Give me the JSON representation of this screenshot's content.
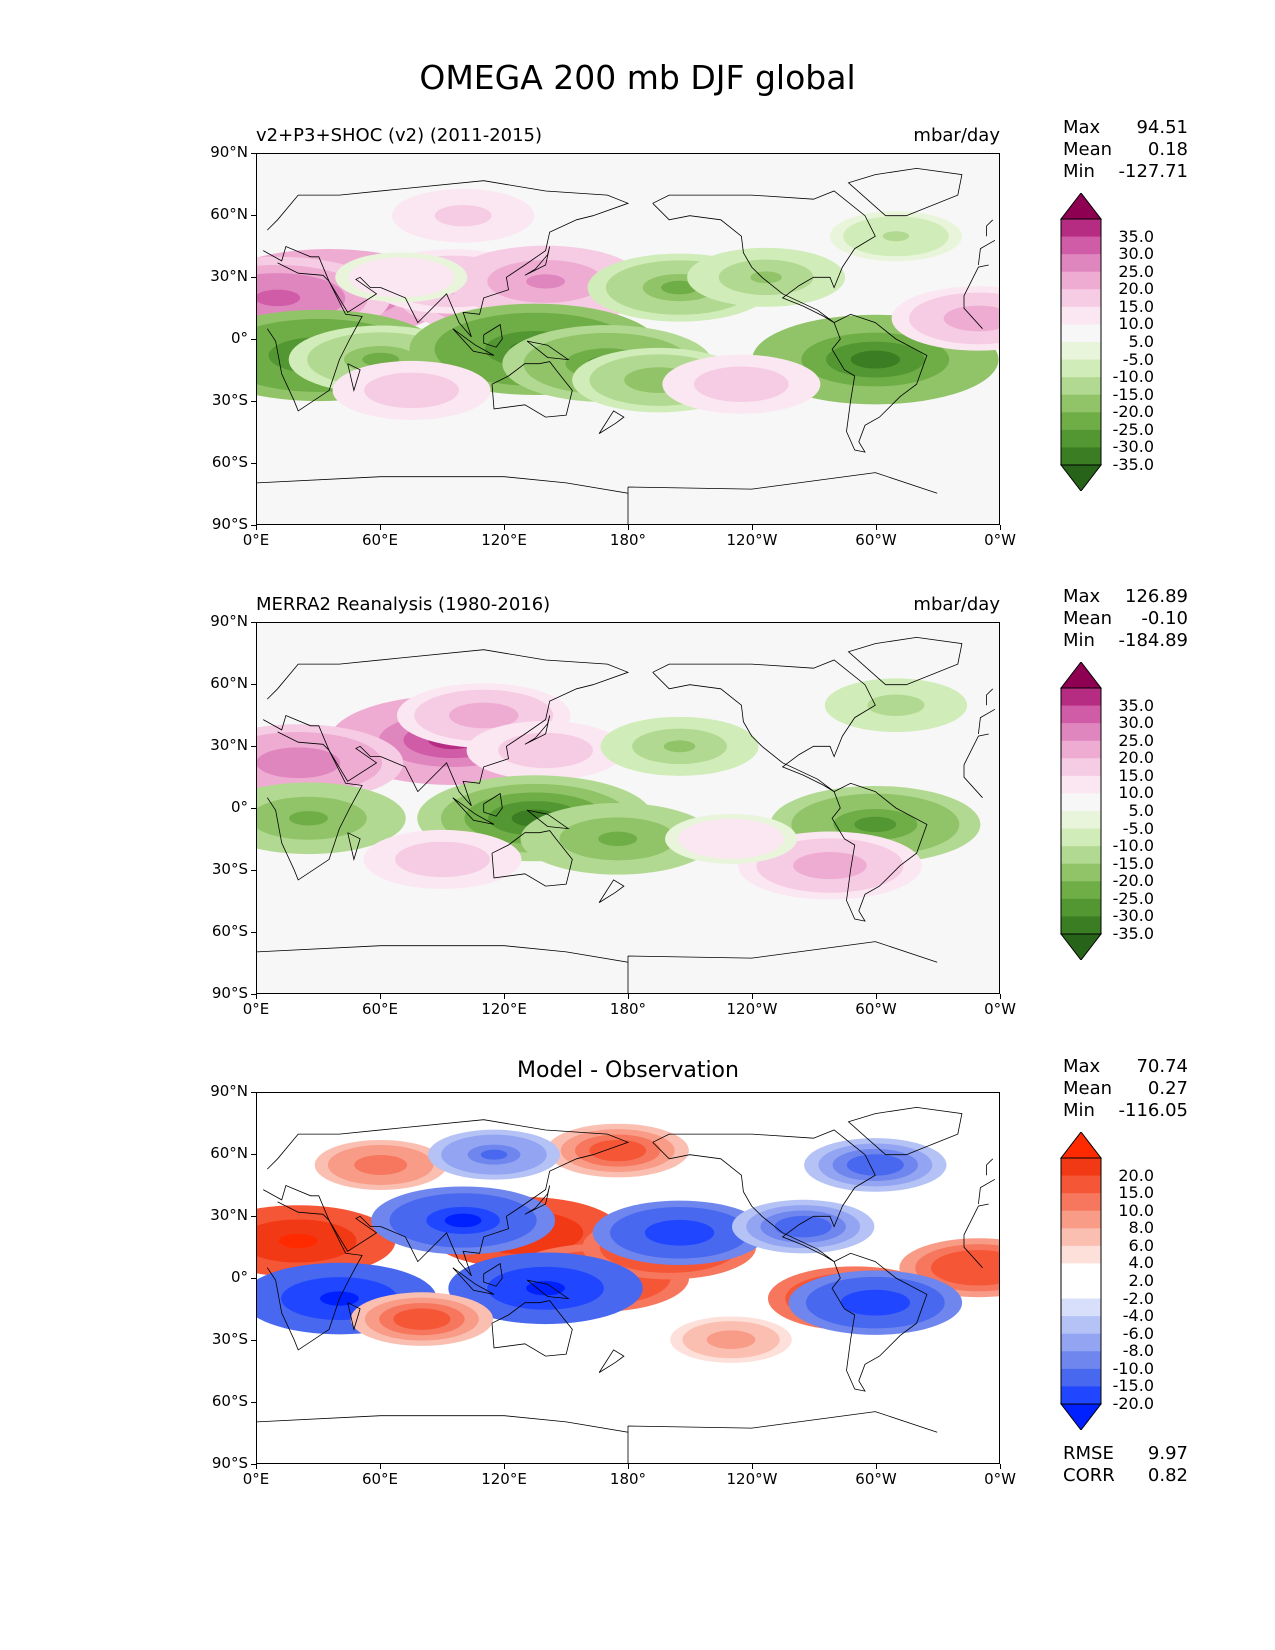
{
  "figure": {
    "title": "OMEGA 200 mb DJF global"
  },
  "palettes": {
    "pink_green": [
      "#27641a",
      "#3a7d22",
      "#539732",
      "#6fad47",
      "#91c468",
      "#b2d991",
      "#d0ecb8",
      "#e8f5da",
      "#f7f7f7",
      "#fbe7f1",
      "#f6cce4",
      "#eeacd3",
      "#e086bf",
      "#d05ba6",
      "#b62c83",
      "#8e0152"
    ],
    "blue_red": [
      "#0021ff",
      "#2047ff",
      "#4968f0",
      "#6e86ee",
      "#93a5f2",
      "#b4c2f5",
      "#d7dffa",
      "#ffffff",
      "#ffffff",
      "#fde0d9",
      "#fbbfb2",
      "#f89b87",
      "#f6775d",
      "#f55636",
      "#f23915",
      "#ff2a00"
    ]
  },
  "chart_data": [
    {
      "type": "heatmap",
      "panel": "model",
      "left_title": "v2+P3+SHOC (v2) (2011-2015)",
      "right_title": "mbar/day",
      "stats": {
        "max": "94.51",
        "mean": "0.18",
        "min": "-127.71"
      },
      "stat_labels": {
        "max": "Max",
        "mean": "Mean",
        "min": "Min"
      },
      "x_ticks": [
        "0°E",
        "60°E",
        "120°E",
        "180°",
        "120°W",
        "60°W",
        "0°W"
      ],
      "y_ticks": [
        "90°N",
        "60°N",
        "30°N",
        "0°",
        "30°S",
        "60°S",
        "90°S"
      ],
      "xlim": [
        0,
        360
      ],
      "ylim": [
        -90,
        90
      ],
      "colorbar": {
        "palette": "pink_green",
        "levels": [
          "35.0",
          "30.0",
          "25.0",
          "20.0",
          "15.0",
          "10.0",
          "5.0",
          "-5.0",
          "-10.0",
          "-15.0",
          "-20.0",
          "-25.0",
          "-30.0",
          "-35.0"
        ],
        "extend": "both"
      },
      "features": [
        {
          "lon": 35,
          "lat": 22,
          "value": 32
        },
        {
          "lon": 10,
          "lat": 20,
          "value": 28
        },
        {
          "lon": 125,
          "lat": 22,
          "value": 30
        },
        {
          "lon": 95,
          "lat": 28,
          "value": 18
        },
        {
          "lon": 140,
          "lat": 28,
          "value": 22
        },
        {
          "lon": 70,
          "lat": 30,
          "value": 10
        },
        {
          "lon": 30,
          "lat": -8,
          "value": -33
        },
        {
          "lon": 60,
          "lat": -10,
          "value": -20
        },
        {
          "lon": 135,
          "lat": -5,
          "value": -33
        },
        {
          "lon": 170,
          "lat": -12,
          "value": -25
        },
        {
          "lon": 195,
          "lat": -20,
          "value": -18
        },
        {
          "lon": 300,
          "lat": -10,
          "value": -32
        },
        {
          "lon": 205,
          "lat": 25,
          "value": -20
        },
        {
          "lon": 247,
          "lat": 30,
          "value": -15
        },
        {
          "lon": 310,
          "lat": 50,
          "value": -10
        },
        {
          "lon": 100,
          "lat": 60,
          "value": 12
        },
        {
          "lon": 75,
          "lat": -25,
          "value": 15
        },
        {
          "lon": 235,
          "lat": -22,
          "value": 15
        },
        {
          "lon": 350,
          "lat": 10,
          "value": 18
        }
      ]
    },
    {
      "type": "heatmap",
      "panel": "observation",
      "left_title": "MERRA2 Reanalysis (1980-2016)",
      "right_title": "mbar/day",
      "stats": {
        "max": "126.89",
        "mean": "-0.10",
        "min": "-184.89"
      },
      "stat_labels": {
        "max": "Max",
        "mean": "Mean",
        "min": "Min"
      },
      "x_ticks": [
        "0°E",
        "60°E",
        "120°E",
        "180°",
        "120°W",
        "60°W",
        "0°W"
      ],
      "y_ticks": [
        "90°N",
        "60°N",
        "30°N",
        "0°",
        "30°S",
        "60°S",
        "90°S"
      ],
      "xlim": [
        0,
        360
      ],
      "ylim": [
        -90,
        90
      ],
      "colorbar": {
        "palette": "pink_green",
        "levels": [
          "35.0",
          "30.0",
          "25.0",
          "20.0",
          "15.0",
          "10.0",
          "5.0",
          "-5.0",
          "-10.0",
          "-15.0",
          "-20.0",
          "-25.0",
          "-30.0",
          "-35.0"
        ],
        "extend": "both"
      },
      "features": [
        {
          "lon": 95,
          "lat": 33,
          "value": 32
        },
        {
          "lon": 20,
          "lat": 22,
          "value": 25
        },
        {
          "lon": 110,
          "lat": 45,
          "value": 18
        },
        {
          "lon": 140,
          "lat": 28,
          "value": 15
        },
        {
          "lon": 135,
          "lat": -5,
          "value": -30
        },
        {
          "lon": 175,
          "lat": -15,
          "value": -22
        },
        {
          "lon": 25,
          "lat": -5,
          "value": -22
        },
        {
          "lon": 300,
          "lat": -8,
          "value": -25
        },
        {
          "lon": 205,
          "lat": 30,
          "value": -15
        },
        {
          "lon": 310,
          "lat": 50,
          "value": -12
        },
        {
          "lon": 90,
          "lat": -25,
          "value": 15
        },
        {
          "lon": 278,
          "lat": -28,
          "value": 20
        },
        {
          "lon": 230,
          "lat": -15,
          "value": 10
        }
      ]
    },
    {
      "type": "heatmap",
      "panel": "difference",
      "left_title": "",
      "center_title": "Model - Observation",
      "right_title": "",
      "stats": {
        "max": "70.74",
        "mean": "0.27",
        "min": "-116.05"
      },
      "stat_labels": {
        "max": "Max",
        "mean": "Mean",
        "min": "Min"
      },
      "metrics": {
        "rmse_label": "RMSE",
        "rmse": "9.97",
        "corr_label": "CORR",
        "corr": "0.82"
      },
      "x_ticks": [
        "0°E",
        "60°E",
        "120°E",
        "180°",
        "120°W",
        "60°W",
        "0°W"
      ],
      "y_ticks": [
        "90°N",
        "60°N",
        "30°N",
        "0°",
        "30°S",
        "60°S",
        "90°S"
      ],
      "xlim": [
        0,
        360
      ],
      "ylim": [
        -90,
        90
      ],
      "colorbar": {
        "palette": "blue_red",
        "levels": [
          "20.0",
          "15.0",
          "10.0",
          "8.0",
          "6.0",
          "4.0",
          "2.0",
          "-2.0",
          "-4.0",
          "-6.0",
          "-8.0",
          "-10.0",
          "-15.0",
          "-20.0"
        ],
        "extend": "both"
      },
      "features": [
        {
          "lon": 20,
          "lat": 18,
          "value": 22
        },
        {
          "lon": 130,
          "lat": 22,
          "value": 22
        },
        {
          "lon": 165,
          "lat": 0,
          "value": 20
        },
        {
          "lon": 200,
          "lat": 15,
          "value": 18
        },
        {
          "lon": 290,
          "lat": -10,
          "value": 18
        },
        {
          "lon": 350,
          "lat": 5,
          "value": 15
        },
        {
          "lon": 60,
          "lat": 55,
          "value": 10
        },
        {
          "lon": 175,
          "lat": 62,
          "value": 12
        },
        {
          "lon": 40,
          "lat": -10,
          "value": -22
        },
        {
          "lon": 140,
          "lat": -5,
          "value": -22
        },
        {
          "lon": 100,
          "lat": 28,
          "value": -20
        },
        {
          "lon": 205,
          "lat": 22,
          "value": -18
        },
        {
          "lon": 300,
          "lat": -12,
          "value": -18
        },
        {
          "lon": 265,
          "lat": 25,
          "value": -12
        },
        {
          "lon": 300,
          "lat": 55,
          "value": -12
        },
        {
          "lon": 115,
          "lat": 60,
          "value": -10
        },
        {
          "lon": 80,
          "lat": -20,
          "value": 12
        },
        {
          "lon": 230,
          "lat": -30,
          "value": 8
        }
      ]
    }
  ]
}
